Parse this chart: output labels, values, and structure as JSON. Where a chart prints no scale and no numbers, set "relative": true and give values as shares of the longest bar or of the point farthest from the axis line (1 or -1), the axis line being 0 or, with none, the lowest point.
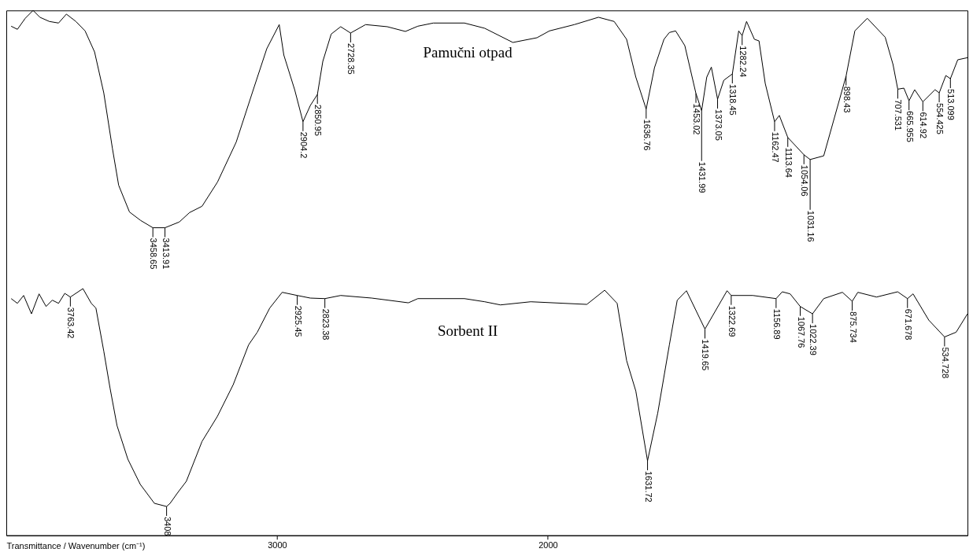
{
  "chart_data": {
    "type": "line",
    "xlabel": "Transmittance / Wavenumber (cm⁻¹)",
    "relative": true,
    "xlim": [
      4000,
      450
    ],
    "xticks": [
      3000,
      2000
    ],
    "grid": false,
    "series": [
      {
        "name": "Pamučni otpad",
        "color": "#000000",
        "x": [
          3982,
          3959,
          3930,
          3901,
          3876,
          3841,
          3807,
          3778,
          3743,
          3709,
          3674,
          3640,
          3608,
          3585,
          3545,
          3504,
          3458.65,
          3413.91,
          3361,
          3323,
          3277,
          3220,
          3151,
          3084,
          3038,
          2992,
          2975,
          2935,
          2904.2,
          2877,
          2850.95,
          2831,
          2800,
          2765,
          2728.35,
          2673,
          2593,
          2526,
          2480,
          2423,
          2308,
          2233,
          2129,
          2040,
          1994,
          1902,
          1813,
          1755,
          1709,
          1675,
          1636.76,
          1606,
          1571,
          1551,
          1528,
          1494,
          1453.02,
          1431.99,
          1413,
          1396,
          1373.05,
          1350,
          1318.45,
          1295,
          1282.24,
          1266,
          1237,
          1220,
          1197,
          1162.47,
          1145,
          1113.64,
          1054.06,
          1031.16,
          981,
          898.43,
          866,
          820,
          754,
          725,
          707.531,
          685,
          665.955,
          645,
          614.92,
          570,
          554.425,
          530,
          513.099,
          486,
          450
        ],
        "values": [
          0.97,
          0.964,
          0.985,
          1.0,
          0.987,
          0.979,
          0.976,
          0.993,
          0.979,
          0.961,
          0.921,
          0.843,
          0.737,
          0.667,
          0.616,
          0.6,
          0.586,
          0.586,
          0.597,
          0.615,
          0.627,
          0.673,
          0.749,
          0.855,
          0.927,
          0.973,
          0.915,
          0.849,
          0.788,
          0.819,
          0.84,
          0.903,
          0.955,
          0.969,
          0.957,
          0.973,
          0.969,
          0.96,
          0.97,
          0.976,
          0.976,
          0.966,
          0.939,
          0.948,
          0.961,
          0.973,
          0.987,
          0.979,
          0.945,
          0.873,
          0.812,
          0.891,
          0.945,
          0.958,
          0.961,
          0.933,
          0.842,
          0.809,
          0.873,
          0.892,
          0.831,
          0.867,
          0.879,
          0.961,
          0.952,
          0.979,
          0.945,
          0.942,
          0.861,
          0.788,
          0.8,
          0.758,
          0.725,
          0.716,
          0.723,
          0.875,
          0.961,
          0.985,
          0.949,
          0.897,
          0.85,
          0.852,
          0.828,
          0.849,
          0.826,
          0.849,
          0.843,
          0.876,
          0.87,
          0.906,
          0.91
        ]
      },
      {
        "name": "Sorbent II",
        "color": "#000000",
        "x": [
          3982,
          3959,
          3936,
          3907,
          3879,
          3853,
          3830,
          3807,
          3784,
          3763.42,
          3717,
          3686,
          3669,
          3640,
          3617,
          3591,
          3551,
          3505,
          3453,
          3408,
          3395,
          3366,
          3335,
          3277,
          3220,
          3162,
          3105,
          3073,
          3027,
          2981,
          2925.45,
          2877,
          2823.38,
          2765,
          2650,
          2515,
          2480,
          2308,
          2233,
          2175,
          2063,
          1856,
          1790,
          1744,
          1709,
          1675,
          1631.72,
          1594,
          1551,
          1522,
          1488,
          1419.65,
          1338,
          1322.69,
          1243,
          1156.89,
          1134,
          1105,
          1067.76,
          1022.39,
          981,
          912,
          875.734,
          855,
          786,
          708,
          671.678,
          651,
          593,
          534.728,
          492,
          450
        ],
        "values": [
          0.451,
          0.442,
          0.457,
          0.422,
          0.46,
          0.436,
          0.448,
          0.442,
          0.461,
          0.454,
          0.47,
          0.442,
          0.433,
          0.351,
          0.281,
          0.209,
          0.145,
          0.097,
          0.061,
          0.055,
          0.061,
          0.082,
          0.103,
          0.179,
          0.227,
          0.287,
          0.363,
          0.387,
          0.433,
          0.463,
          0.457,
          0.452,
          0.451,
          0.457,
          0.452,
          0.443,
          0.451,
          0.451,
          0.445,
          0.439,
          0.445,
          0.44,
          0.467,
          0.442,
          0.333,
          0.275,
          0.142,
          0.233,
          0.363,
          0.448,
          0.466,
          0.393,
          0.466,
          0.457,
          0.457,
          0.451,
          0.464,
          0.46,
          0.436,
          0.422,
          0.451,
          0.463,
          0.446,
          0.463,
          0.454,
          0.464,
          0.451,
          0.46,
          0.41,
          0.378,
          0.387,
          0.422
        ]
      }
    ],
    "annotations": [
      {
        "text": "3458.65",
        "x": 3458.65,
        "y": 0.586
      },
      {
        "text": "3413.91",
        "x": 3413.91,
        "y": 0.586
      },
      {
        "text": "2904.2",
        "x": 2904.2,
        "y": 0.788
      },
      {
        "text": "2850.95",
        "x": 2850.95,
        "y": 0.84
      },
      {
        "text": "2728.35",
        "x": 2728.35,
        "y": 0.957
      },
      {
        "text": "1636.76",
        "x": 1636.76,
        "y": 0.812
      },
      {
        "text": "1453.02",
        "x": 1453.02,
        "y": 0.842
      },
      {
        "text": "1431.99",
        "x": 1431.99,
        "y": 0.809
      },
      {
        "text": "1373.05",
        "x": 1373.05,
        "y": 0.831
      },
      {
        "text": "1318.45",
        "x": 1318.45,
        "y": 0.879
      },
      {
        "text": "1282.24",
        "x": 1282.24,
        "y": 0.952
      },
      {
        "text": "1162.47",
        "x": 1162.47,
        "y": 0.788
      },
      {
        "text": "1113.64",
        "x": 1113.64,
        "y": 0.758
      },
      {
        "text": "1054.06",
        "x": 1054.06,
        "y": 0.725
      },
      {
        "text": "1031.16",
        "x": 1031.16,
        "y": 0.716
      },
      {
        "text": "898.43",
        "x": 898.43,
        "y": 0.875
      },
      {
        "text": "707.531",
        "x": 707.531,
        "y": 0.85
      },
      {
        "text": "665.955",
        "x": 665.955,
        "y": 0.828
      },
      {
        "text": "614.92",
        "x": 614.92,
        "y": 0.826
      },
      {
        "text": "554.425",
        "x": 554.425,
        "y": 0.843
      },
      {
        "text": "513.099",
        "x": 513.099,
        "y": 0.87
      },
      {
        "text": "3763.42",
        "x": 3763.42,
        "y": 0.454
      },
      {
        "text": "3408",
        "x": 3408,
        "y": 0.055
      },
      {
        "text": "2925.45",
        "x": 2925.45,
        "y": 0.457
      },
      {
        "text": "2823.38",
        "x": 2823.38,
        "y": 0.451
      },
      {
        "text": "1631.72",
        "x": 1631.72,
        "y": 0.142
      },
      {
        "text": "1419.65",
        "x": 1419.65,
        "y": 0.393
      },
      {
        "text": "1322.69",
        "x": 1322.69,
        "y": 0.457
      },
      {
        "text": "1156.89",
        "x": 1156.89,
        "y": 0.451
      },
      {
        "text": "1067.76",
        "x": 1067.76,
        "y": 0.436
      },
      {
        "text": "1022.39",
        "x": 1022.39,
        "y": 0.422
      },
      {
        "text": "875.734",
        "x": 875.734,
        "y": 0.446
      },
      {
        "text": "671.678",
        "x": 671.678,
        "y": 0.451
      },
      {
        "text": "534.728",
        "x": 534.728,
        "y": 0.378
      }
    ]
  }
}
